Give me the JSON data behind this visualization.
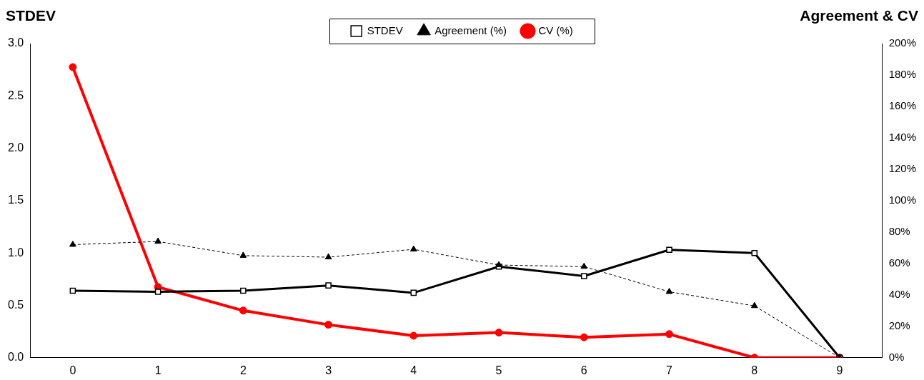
{
  "chart_data": {
    "type": "line",
    "ylabel": "STDEV",
    "y2label": "Agreement & CV",
    "categories": [
      "0",
      "1",
      "2",
      "3",
      "4",
      "5",
      "6",
      "7",
      "8",
      "9"
    ],
    "series": [
      {
        "name": "STDEV",
        "color": "#000000",
        "marker": "square",
        "line_style": "solid",
        "values": [
          0.64,
          0.63,
          0.64,
          0.69,
          0.62,
          0.87,
          0.78,
          1.03,
          1.0,
          0
        ]
      },
      {
        "name": "Agreement (%)",
        "color": "#000000",
        "marker": "triangle",
        "line_style": "dashed",
        "axis": "y2",
        "values": [
          72,
          74,
          65,
          64,
          69,
          59,
          58,
          42,
          33,
          0
        ]
      },
      {
        "name": "CV (%)",
        "color": "#ff0000",
        "marker": "circle",
        "line_style": "solid",
        "axis": "y2",
        "values": [
          185,
          45,
          30,
          21,
          14,
          16,
          13,
          15,
          0,
          0
        ]
      }
    ],
    "ylim": [
      0,
      3
    ],
    "yticks": [
      {
        "value": 0,
        "label": "0.0"
      },
      {
        "value": 0.5,
        "label": "0.5"
      },
      {
        "value": 1,
        "label": "1.0"
      },
      {
        "value": 1.5,
        "label": "1.5"
      },
      {
        "value": 2,
        "label": "2.0"
      },
      {
        "value": 2.5,
        "label": "2.5"
      },
      {
        "value": 3,
        "label": "3.0"
      }
    ],
    "y2lim": [
      0,
      200
    ],
    "y2ticks": [
      {
        "value": 0,
        "label": "0%"
      },
      {
        "value": 20,
        "label": "20%"
      },
      {
        "value": 40,
        "label": "40%"
      },
      {
        "value": 60,
        "label": "60%"
      },
      {
        "value": 80,
        "label": "80%"
      },
      {
        "value": 100,
        "label": "100%"
      },
      {
        "value": 120,
        "label": "120%"
      },
      {
        "value": 140,
        "label": "140%"
      },
      {
        "value": 160,
        "label": "160%"
      },
      {
        "value": 180,
        "label": "180%"
      },
      {
        "value": 200,
        "label": "200%"
      }
    ],
    "grid": false,
    "legend": "top"
  }
}
